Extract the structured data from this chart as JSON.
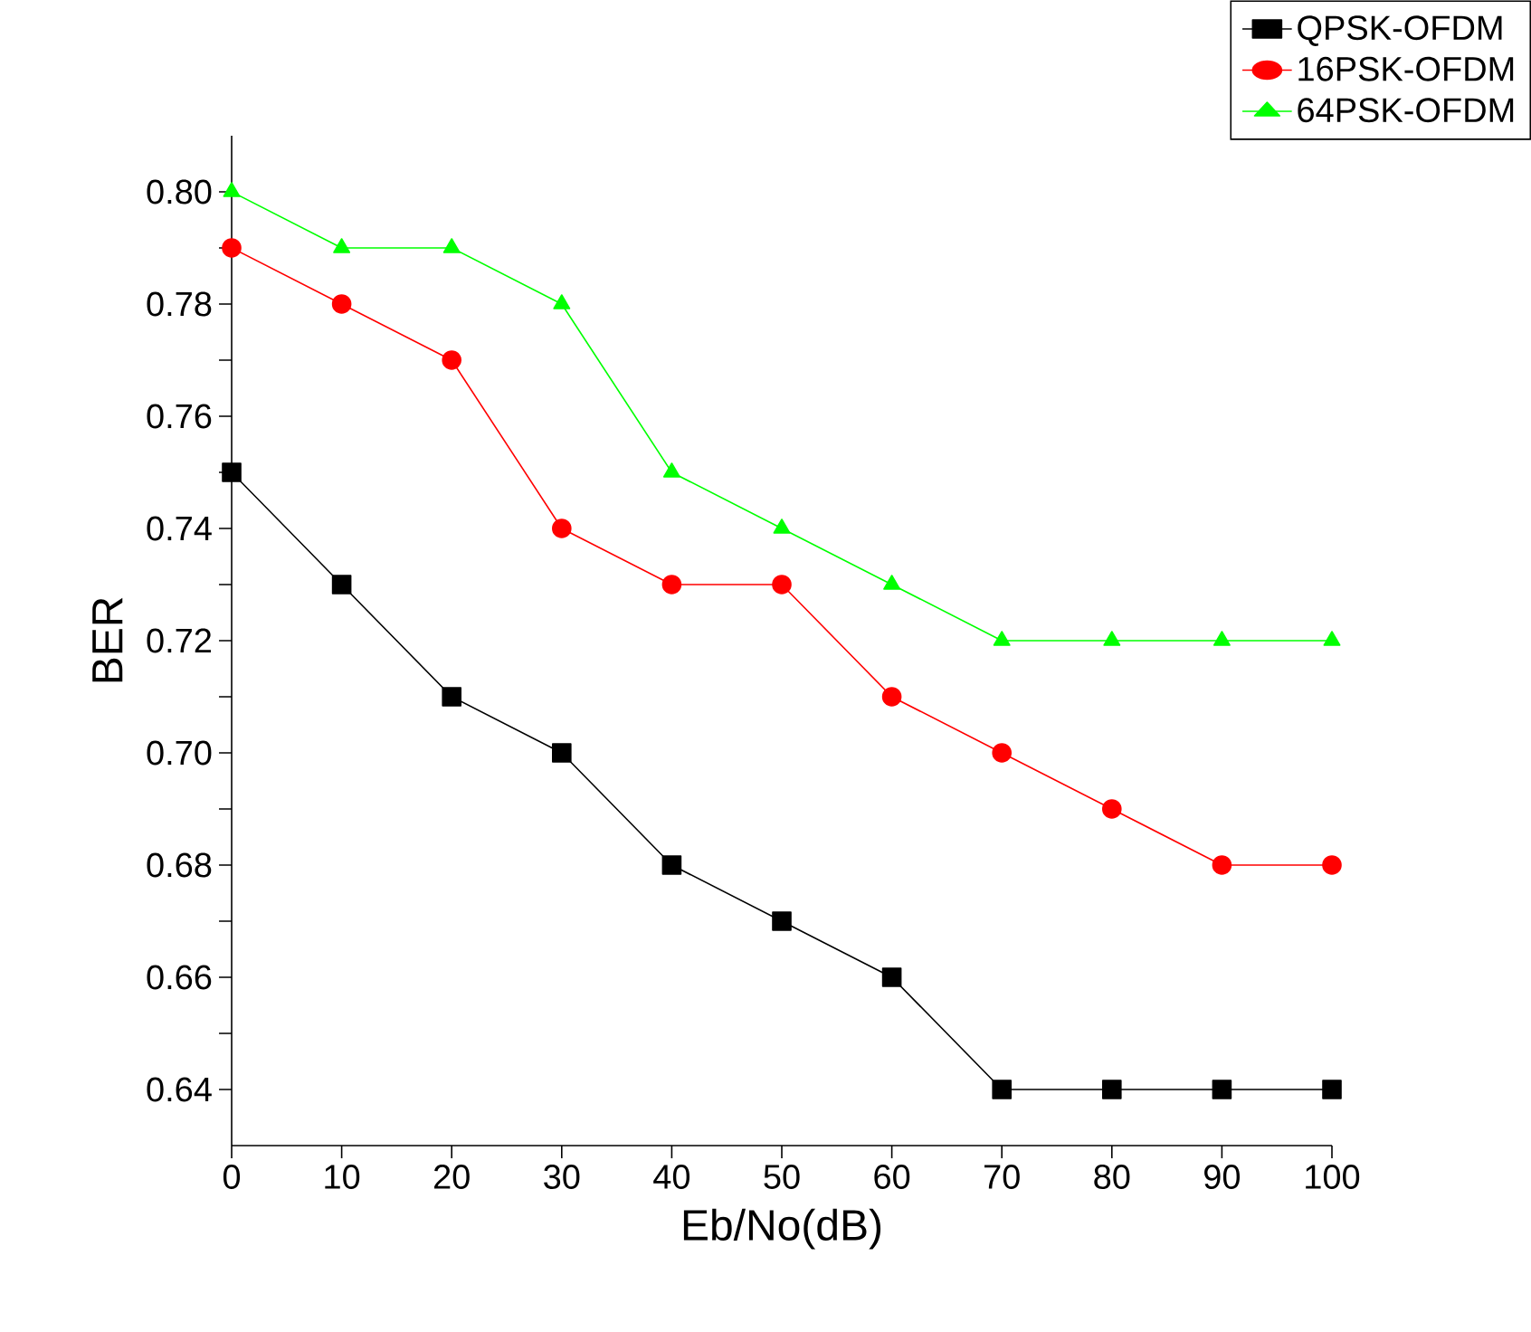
{
  "chart_data": {
    "type": "line",
    "xlabel": "Eb/No(dB)",
    "ylabel": "BER",
    "x": [
      0,
      10,
      20,
      30,
      40,
      50,
      60,
      70,
      80,
      90,
      100
    ],
    "series": [
      {
        "name": "QPSK-OFDM",
        "color": "#000000",
        "marker": "square",
        "values": [
          0.75,
          0.73,
          0.71,
          0.7,
          0.68,
          0.67,
          0.66,
          0.64,
          0.64,
          0.64,
          0.64
        ]
      },
      {
        "name": "16PSK-OFDM",
        "color": "#ff0000",
        "marker": "circle",
        "values": [
          0.79,
          0.78,
          0.77,
          0.74,
          0.73,
          0.73,
          0.71,
          0.7,
          0.69,
          0.68,
          0.68
        ]
      },
      {
        "name": "64PSK-OFDM",
        "color": "#00ff00",
        "marker": "triangle",
        "values": [
          0.8,
          0.79,
          0.79,
          0.78,
          0.75,
          0.74,
          0.73,
          0.72,
          0.72,
          0.72,
          0.72
        ]
      }
    ],
    "xlim": [
      0,
      100
    ],
    "ylim": [
      0.63,
      0.81
    ],
    "xticks": [
      0,
      10,
      20,
      30,
      40,
      50,
      60,
      70,
      80,
      90,
      100
    ],
    "yticks": [
      {
        "value": 0.64,
        "label": "0.64"
      },
      {
        "value": 0.65,
        "label": null
      },
      {
        "value": 0.66,
        "label": "0.66"
      },
      {
        "value": 0.67,
        "label": null
      },
      {
        "value": 0.68,
        "label": "0.68"
      },
      {
        "value": 0.69,
        "label": null
      },
      {
        "value": 0.7,
        "label": "0.70"
      },
      {
        "value": 0.71,
        "label": null
      },
      {
        "value": 0.72,
        "label": "0.72"
      },
      {
        "value": 0.73,
        "label": null
      },
      {
        "value": 0.74,
        "label": "0.74"
      },
      {
        "value": 0.75,
        "label": null
      },
      {
        "value": 0.76,
        "label": "0.76"
      },
      {
        "value": 0.77,
        "label": null
      },
      {
        "value": 0.78,
        "label": "0.78"
      },
      {
        "value": 0.79,
        "label": null
      },
      {
        "value": 0.8,
        "label": "0.80"
      }
    ],
    "legend": "top right"
  }
}
